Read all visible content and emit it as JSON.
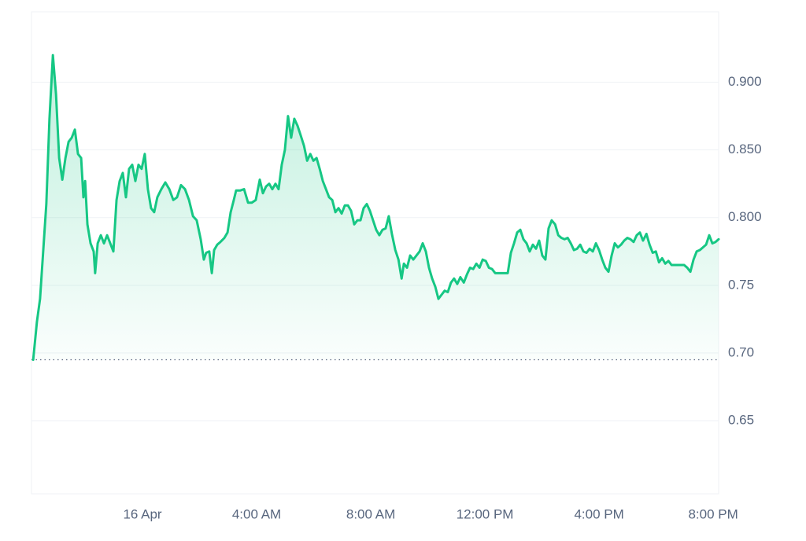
{
  "chart_data": {
    "type": "line",
    "color": "#16c784",
    "grid": true,
    "reference_line": 0.695,
    "xlim": [
      -3.89,
      20.19
    ],
    "ylim": [
      0.596,
      0.952
    ],
    "xticks": [
      {
        "value": 0,
        "label": "16 Apr"
      },
      {
        "value": 4,
        "label": "4:00 AM"
      },
      {
        "value": 8,
        "label": "8:00 AM"
      },
      {
        "value": 12,
        "label": "12:00 PM"
      },
      {
        "value": 16,
        "label": "4:00 PM"
      },
      {
        "value": 20,
        "label": "8:00 PM"
      }
    ],
    "yticks": [
      0.65,
      {
        "value": 0.7,
        "label": "0.70"
      },
      0.75,
      {
        "value": 0.8,
        "label": "0.800"
      },
      {
        "value": 0.85,
        "label": "0.850"
      },
      {
        "value": 0.9,
        "label": "0.900"
      }
    ],
    "x": [
      -3.83,
      -3.7,
      -3.59,
      -3.48,
      -3.37,
      -3.26,
      -3.14,
      -3.03,
      -2.92,
      -2.81,
      -2.7,
      -2.59,
      -2.48,
      -2.37,
      -2.26,
      -2.15,
      -2.07,
      -2.01,
      -1.93,
      -1.82,
      -1.71,
      -1.66,
      -1.57,
      -1.46,
      -1.35,
      -1.24,
      -1.13,
      -1.02,
      -0.91,
      -0.8,
      -0.69,
      -0.58,
      -0.47,
      -0.36,
      -0.25,
      -0.14,
      -0.03,
      0.08,
      0.19,
      0.3,
      0.41,
      0.52,
      0.66,
      0.8,
      0.94,
      1.08,
      1.21,
      1.35,
      1.49,
      1.63,
      1.77,
      1.9,
      2.04,
      2.15,
      2.23,
      2.34,
      2.43,
      2.51,
      2.62,
      2.73,
      2.87,
      2.98,
      3.09,
      3.2,
      3.28,
      3.42,
      3.56,
      3.7,
      3.83,
      3.97,
      4.11,
      4.22,
      4.33,
      4.44,
      4.55,
      4.66,
      4.77,
      4.88,
      4.99,
      5.1,
      5.21,
      5.32,
      5.43,
      5.54,
      5.66,
      5.77,
      5.88,
      5.99,
      6.1,
      6.21,
      6.32,
      6.43,
      6.54,
      6.65,
      6.76,
      6.87,
      6.98,
      7.09,
      7.2,
      7.31,
      7.42,
      7.53,
      7.64,
      7.75,
      7.86,
      7.97,
      8.08,
      8.19,
      8.3,
      8.41,
      8.52,
      8.63,
      8.74,
      8.86,
      8.97,
      9.08,
      9.16,
      9.27,
      9.38,
      9.49,
      9.6,
      9.71,
      9.82,
      9.93,
      10.04,
      10.15,
      10.26,
      10.37,
      10.48,
      10.59,
      10.7,
      10.81,
      10.92,
      11.03,
      11.14,
      11.26,
      11.37,
      11.48,
      11.59,
      11.7,
      11.81,
      11.92,
      12.03,
      12.14,
      12.25,
      12.36,
      12.58,
      12.8,
      12.91,
      13.02,
      13.13,
      13.24,
      13.35,
      13.46,
      13.57,
      13.68,
      13.79,
      13.9,
      14.01,
      14.12,
      14.23,
      14.34,
      14.46,
      14.57,
      14.68,
      14.79,
      14.9,
      15.01,
      15.12,
      15.23,
      15.34,
      15.45,
      15.56,
      15.67,
      15.78,
      15.89,
      16.0,
      16.11,
      16.22,
      16.33,
      16.44,
      16.55,
      16.66,
      16.77,
      16.88,
      16.99,
      17.1,
      17.21,
      17.32,
      17.43,
      17.54,
      17.66,
      17.77,
      17.88,
      17.99,
      18.1,
      18.21,
      18.32,
      18.43,
      18.54,
      18.76,
      18.98,
      19.09,
      19.2,
      19.31,
      19.42,
      19.53,
      19.64,
      19.75,
      19.86,
      19.97,
      20.08,
      20.19
    ],
    "values": [
      0.695,
      0.723,
      0.74,
      0.775,
      0.81,
      0.873,
      0.92,
      0.891,
      0.844,
      0.828,
      0.844,
      0.856,
      0.859,
      0.865,
      0.847,
      0.844,
      0.815,
      0.827,
      0.795,
      0.781,
      0.775,
      0.759,
      0.781,
      0.787,
      0.781,
      0.787,
      0.781,
      0.775,
      0.813,
      0.827,
      0.833,
      0.815,
      0.836,
      0.839,
      0.827,
      0.839,
      0.836,
      0.847,
      0.821,
      0.807,
      0.804,
      0.815,
      0.821,
      0.826,
      0.821,
      0.813,
      0.815,
      0.824,
      0.821,
      0.813,
      0.801,
      0.798,
      0.784,
      0.769,
      0.774,
      0.775,
      0.759,
      0.776,
      0.78,
      0.782,
      0.785,
      0.789,
      0.804,
      0.813,
      0.82,
      0.82,
      0.821,
      0.811,
      0.811,
      0.813,
      0.828,
      0.818,
      0.823,
      0.825,
      0.821,
      0.825,
      0.821,
      0.839,
      0.85,
      0.875,
      0.859,
      0.873,
      0.868,
      0.861,
      0.853,
      0.842,
      0.847,
      0.842,
      0.844,
      0.836,
      0.827,
      0.821,
      0.815,
      0.813,
      0.804,
      0.807,
      0.803,
      0.809,
      0.809,
      0.805,
      0.795,
      0.798,
      0.798,
      0.807,
      0.81,
      0.805,
      0.798,
      0.791,
      0.787,
      0.791,
      0.792,
      0.801,
      0.788,
      0.776,
      0.769,
      0.755,
      0.766,
      0.763,
      0.772,
      0.769,
      0.772,
      0.775,
      0.781,
      0.775,
      0.763,
      0.755,
      0.749,
      0.74,
      0.743,
      0.746,
      0.745,
      0.752,
      0.755,
      0.751,
      0.756,
      0.752,
      0.758,
      0.763,
      0.762,
      0.766,
      0.763,
      0.769,
      0.768,
      0.763,
      0.762,
      0.759,
      0.759,
      0.759,
      0.774,
      0.781,
      0.789,
      0.791,
      0.784,
      0.781,
      0.775,
      0.78,
      0.777,
      0.783,
      0.772,
      0.769,
      0.792,
      0.798,
      0.795,
      0.787,
      0.785,
      0.784,
      0.785,
      0.781,
      0.776,
      0.777,
      0.78,
      0.775,
      0.774,
      0.777,
      0.775,
      0.781,
      0.776,
      0.769,
      0.763,
      0.76,
      0.772,
      0.781,
      0.778,
      0.78,
      0.783,
      0.785,
      0.784,
      0.782,
      0.787,
      0.789,
      0.783,
      0.788,
      0.78,
      0.774,
      0.775,
      0.767,
      0.77,
      0.766,
      0.768,
      0.765,
      0.765,
      0.765,
      0.763,
      0.76,
      0.769,
      0.775,
      0.776,
      0.778,
      0.78,
      0.787,
      0.781,
      0.782,
      0.784
    ]
  }
}
